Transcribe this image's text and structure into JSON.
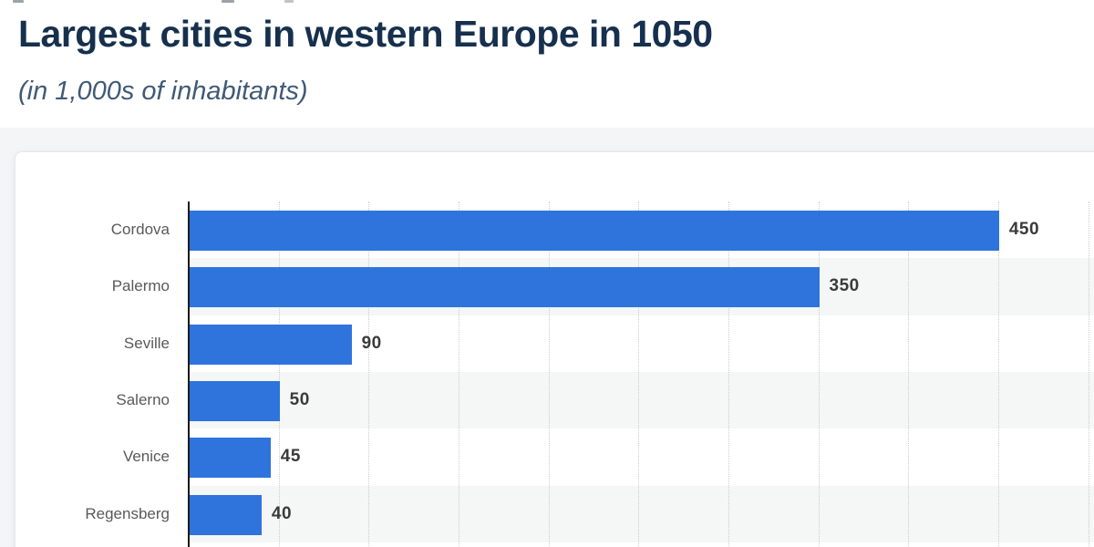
{
  "page": {
    "title": "Largest cities in western Europe in 1050",
    "subtitle": "(in 1,000s of inhabitants)"
  },
  "chart_data": {
    "type": "bar",
    "orientation": "horizontal",
    "title": "Largest cities in western Europe in 1050",
    "subtitle": "(in 1,000s of inhabitants)",
    "categories": [
      "Cordova",
      "Palermo",
      "Seville",
      "Salerno",
      "Venice",
      "Regensberg"
    ],
    "values": [
      450,
      350,
      90,
      50,
      45,
      40
    ],
    "xlabel": "",
    "ylabel": "",
    "xlim": [
      0,
      500
    ],
    "gridline_step": 50,
    "grid": "dotted-vertical-gridlines",
    "legend": "none",
    "row_striping": "alternating",
    "colors": {
      "bar": "#2e74dc",
      "stripe": "#f5f6f6",
      "gridline": "#c9cdce",
      "axis": "#1a1a1a",
      "category_label": "#595959",
      "value_label": "#3a3a3a",
      "title": "#16304d",
      "subtitle": "#3f5a76"
    }
  }
}
